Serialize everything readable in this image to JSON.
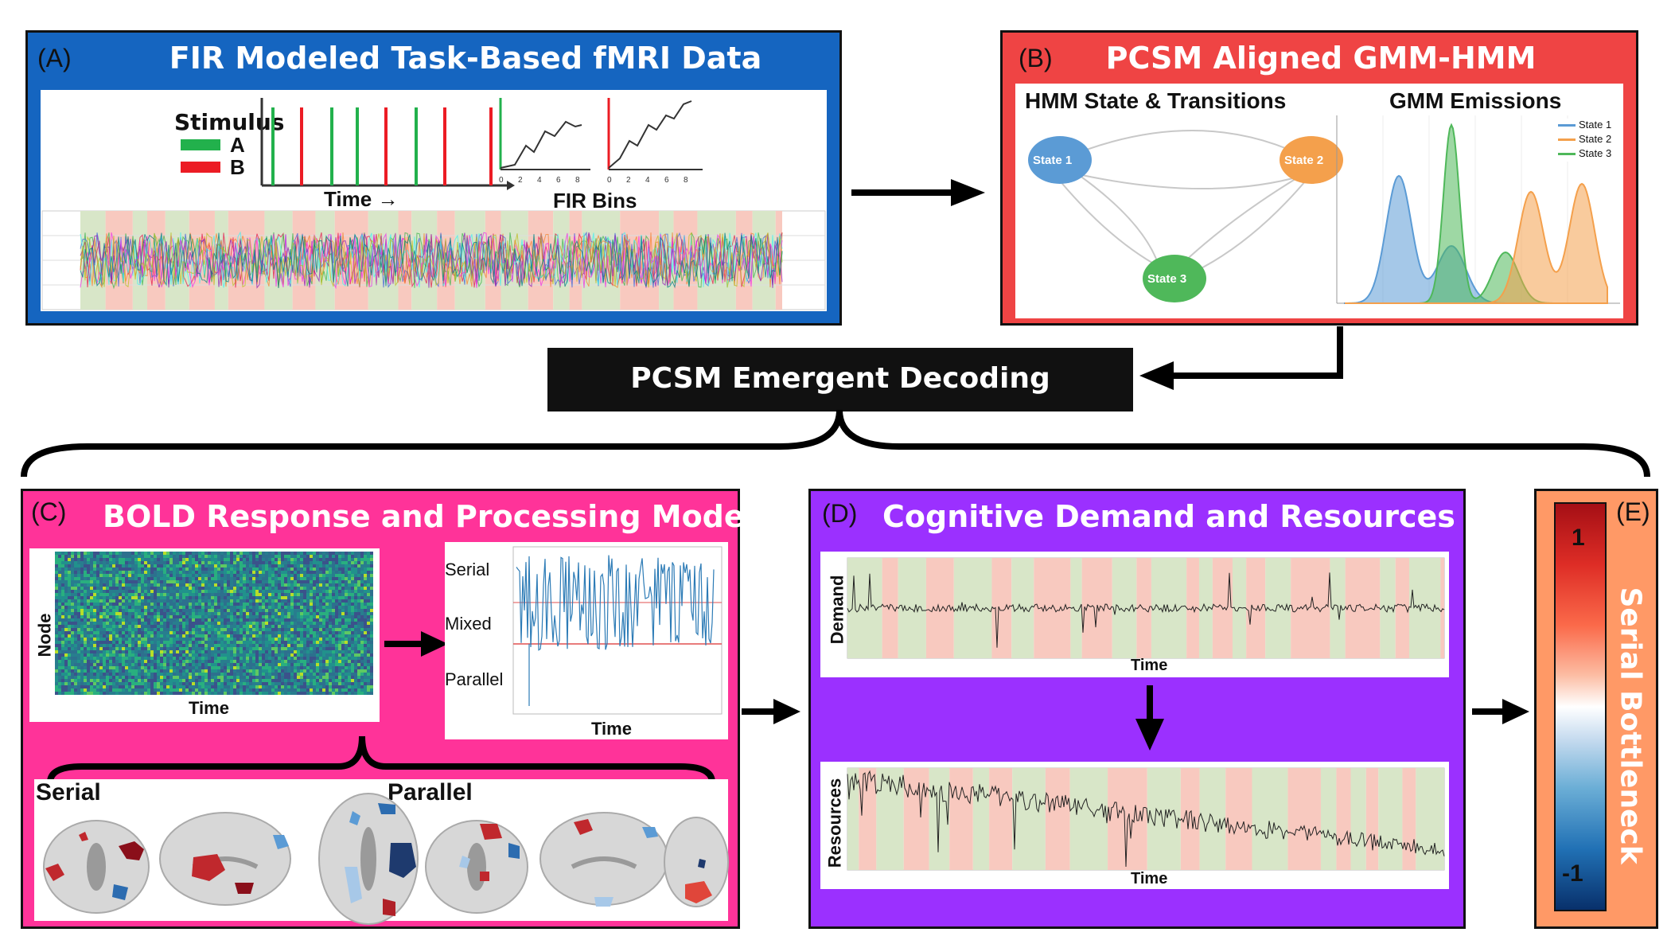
{
  "colors": {
    "panel_a": "#1565c0",
    "panel_b": "#ef4444",
    "panel_c": "#ff3399",
    "panel_d": "#9b30ff",
    "panel_e": "#ff9966",
    "stim_a": "#22b14c",
    "stim_b": "#ec1c24",
    "state1": "#5b9bd5",
    "state2": "#f4a04c",
    "state3": "#4fb85a"
  },
  "panel_a": {
    "label": "(A)",
    "title": "FIR Modeled Task-Based fMRI Data",
    "stimulus_label": "Stimulus",
    "stim_a": "A",
    "stim_b": "B",
    "time_label": "Time →",
    "fir_label": "FIR Bins",
    "fir_ticks": [
      "0",
      "2",
      "4",
      "6",
      "8"
    ]
  },
  "panel_b": {
    "label": "(B)",
    "title": "PCSM Aligned GMM-HMM",
    "hmm_title": "HMM State & Transitions",
    "gmm_title": "GMM Emissions",
    "states": [
      "State 1",
      "State 2",
      "State 3"
    ],
    "legend": [
      "State 1",
      "State 2",
      "State 3"
    ]
  },
  "decoding": {
    "label": "PCSM Emergent Decoding"
  },
  "panel_c": {
    "label": "(C)",
    "title": "BOLD Response and Processing Mode",
    "heatmap_ylabel": "Node",
    "heatmap_xlabel": "Time",
    "mode_levels": [
      "Serial",
      "Mixed",
      "Parallel"
    ],
    "mode_xlabel": "Time",
    "brain_serial": "Serial",
    "brain_parallel": "Parallel"
  },
  "panel_d": {
    "label": "(D)",
    "title": "Cognitive Demand and Resources",
    "demand_ylabel": "Demand",
    "demand_xlabel": "Time",
    "resources_ylabel": "Resources",
    "resources_xlabel": "Time"
  },
  "panel_e": {
    "label": "(E)",
    "title": "Serial Bottleneck",
    "max_label": "1",
    "min_label": "-1"
  }
}
